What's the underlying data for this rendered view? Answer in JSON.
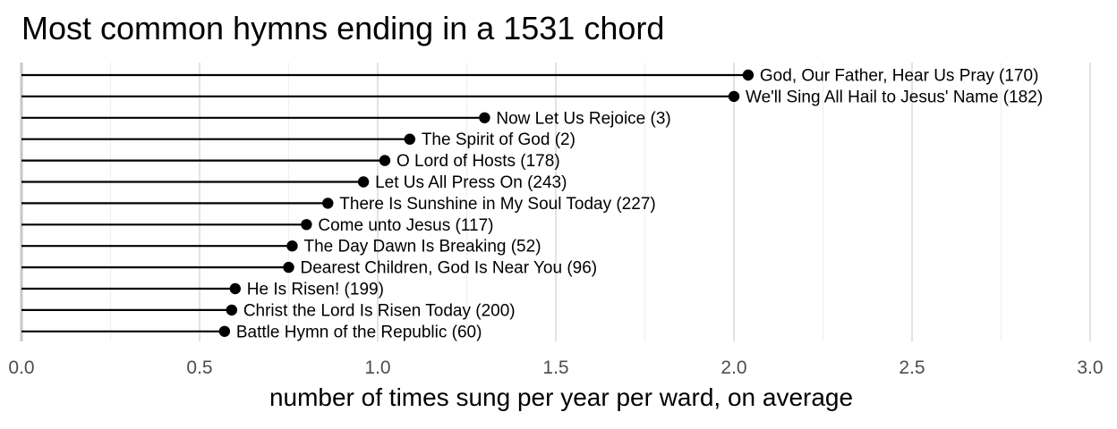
{
  "chart_data": {
    "type": "lollipop",
    "title": "Most common hymns ending in a 1531 chord",
    "xlabel": "number of times sung per year per ward, on average",
    "xlim": [
      0,
      3
    ],
    "xticks": [
      "0.0",
      "0.5",
      "1.0",
      "1.5",
      "2.0",
      "2.5",
      "3.0"
    ],
    "grid": true,
    "series": [
      {
        "label": "God, Our Father, Hear Us Pray (170)",
        "value": 2.04
      },
      {
        "label": "We'll Sing All Hail to Jesus' Name (182)",
        "value": 2.0
      },
      {
        "label": "Now Let Us Rejoice (3)",
        "value": 1.3
      },
      {
        "label": "The Spirit of God (2)",
        "value": 1.09
      },
      {
        "label": "O Lord of Hosts (178)",
        "value": 1.02
      },
      {
        "label": "Let Us All Press On (243)",
        "value": 0.96
      },
      {
        "label": "There Is Sunshine in My Soul Today (227)",
        "value": 0.86
      },
      {
        "label": "Come unto Jesus (117)",
        "value": 0.8
      },
      {
        "label": "The Day Dawn Is Breaking (52)",
        "value": 0.76
      },
      {
        "label": "Dearest Children, God Is Near You (96)",
        "value": 0.75
      },
      {
        "label": "He Is Risen! (199)",
        "value": 0.6
      },
      {
        "label": "Christ the Lord Is Risen Today (200)",
        "value": 0.59
      },
      {
        "label": "Battle Hymn of the Republic (60)",
        "value": 0.57
      }
    ]
  }
}
